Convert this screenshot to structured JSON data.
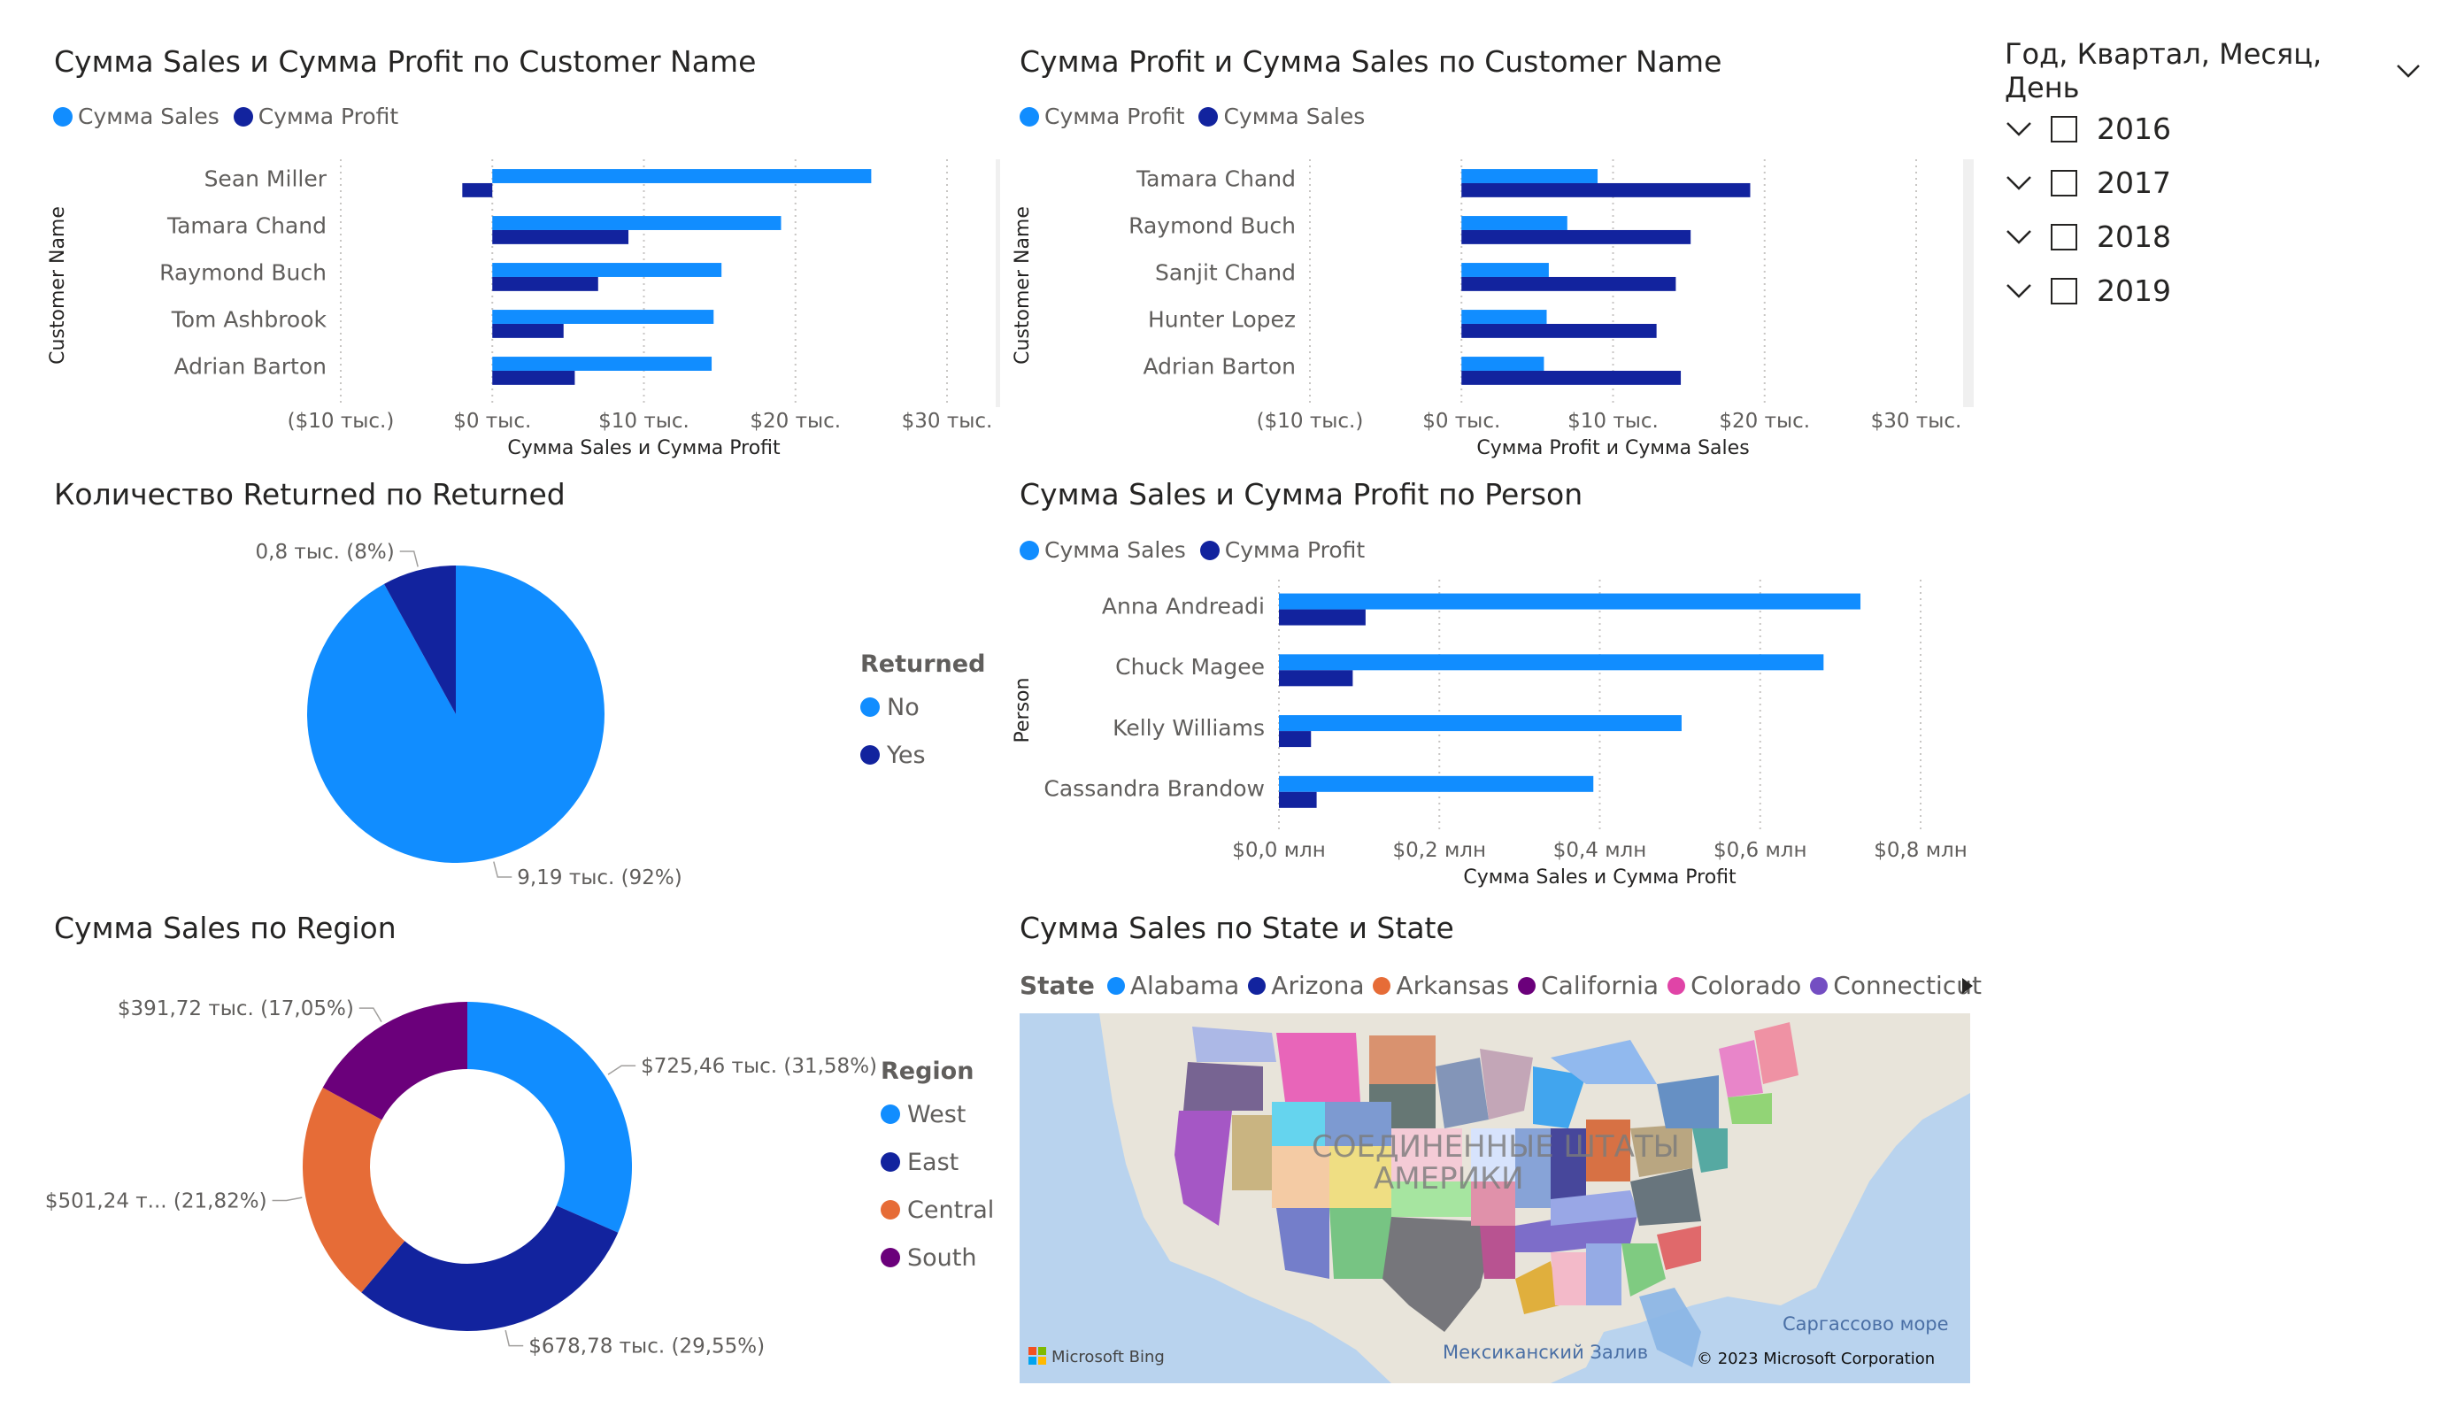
{
  "colors": {
    "sales": "#118DFF",
    "profit": "#12239E",
    "central": "#E66C37",
    "south": "#6B007B",
    "grid": "#c8c6c4",
    "axis_text": "#605e5c"
  },
  "chart_data": [
    {
      "id": "c1",
      "type": "bar",
      "orientation": "horizontal",
      "title": "Сумма Sales и Сумма Profit по Customer Name",
      "xlabel": "Сумма Sales и Сумма Profit",
      "ylabel": "Customer Name",
      "xlim": [
        -10,
        30
      ],
      "ticks": [
        -10,
        0,
        10,
        20,
        30
      ],
      "tick_labels": [
        "($10 тыс.)",
        "$0 тыс.",
        "$10 тыс.",
        "$20 тыс.",
        "$30 тыс."
      ],
      "categories": [
        "Sean Miller",
        "Tamara Chand",
        "Raymond Buch",
        "Tom Ashbrook",
        "Adrian Barton"
      ],
      "series": [
        {
          "name": "Сумма Sales",
          "color": "#118DFF",
          "values": [
            25.0,
            19.05,
            15.12,
            14.6,
            14.47
          ]
        },
        {
          "name": "Сумма Profit",
          "color": "#12239E",
          "values": [
            -1.98,
            8.98,
            6.98,
            4.7,
            5.44
          ]
        }
      ]
    },
    {
      "id": "c2",
      "type": "bar",
      "orientation": "horizontal",
      "title": "Сумма Profit и Сумма Sales по Customer Name",
      "xlabel": "Сумма Profit и Сумма Sales",
      "ylabel": "Customer Name",
      "xlim": [
        -10,
        30
      ],
      "ticks": [
        -10,
        0,
        10,
        20,
        30
      ],
      "tick_labels": [
        "($10 тыс.)",
        "$0 тыс.",
        "$10 тыс.",
        "$20 тыс.",
        "$30 тыс."
      ],
      "categories": [
        "Tamara Chand",
        "Raymond Buch",
        "Sanjit Chand",
        "Hunter Lopez",
        "Adrian Barton"
      ],
      "series": [
        {
          "name": "Сумма Profit",
          "color": "#118DFF",
          "values": [
            8.98,
            6.98,
            5.76,
            5.62,
            5.44
          ]
        },
        {
          "name": "Сумма Sales",
          "color": "#12239E",
          "values": [
            19.05,
            15.12,
            14.14,
            12.87,
            14.47
          ]
        }
      ]
    },
    {
      "id": "c3",
      "type": "pie",
      "title": "Количество Returned по Returned",
      "legend_title": "Returned",
      "categories": [
        "No",
        "Yes"
      ],
      "values": [
        9.19,
        0.8
      ],
      "colors": [
        "#118DFF",
        "#12239E"
      ],
      "data_labels": [
        "9,19 тыс. (92%)",
        "0,8 тыс. (8%)"
      ]
    },
    {
      "id": "c4",
      "type": "bar",
      "orientation": "horizontal",
      "title": "Сумма Sales и Сумма Profit по Person",
      "xlabel": "Сумма Sales и Сумма Profit",
      "ylabel": "Person",
      "xlim": [
        0,
        0.8
      ],
      "ticks": [
        0,
        0.2,
        0.4,
        0.6,
        0.8
      ],
      "tick_labels": [
        "$0,0 млн",
        "$0,2 млн",
        "$0,4 млн",
        "$0,6 млн",
        "$0,8 млн"
      ],
      "categories": [
        "Anna Andreadi",
        "Chuck Magee",
        "Kelly Williams",
        "Cassandra Brandow"
      ],
      "series": [
        {
          "name": "Сумма Sales",
          "color": "#118DFF",
          "values": [
            0.725,
            0.679,
            0.502,
            0.392
          ]
        },
        {
          "name": "Сумма Profit",
          "color": "#12239E",
          "values": [
            0.108,
            0.092,
            0.04,
            0.047
          ]
        }
      ]
    },
    {
      "id": "c5",
      "type": "pie",
      "donut": true,
      "title": "Сумма Sales по Region",
      "legend_title": "Region",
      "categories": [
        "West",
        "East",
        "Central",
        "South"
      ],
      "values": [
        725.46,
        678.78,
        501.24,
        391.72
      ],
      "colors": [
        "#118DFF",
        "#12239E",
        "#E66C37",
        "#6B007B"
      ],
      "data_labels": [
        "$725,46 тыс. (31,58%)",
        "$678,78 тыс. (29,55%)",
        "$501,24 т... (21,82%)",
        "$391,72 тыс. (17,05%)"
      ]
    }
  ],
  "map_chart": {
    "title": "Сумма Sales по State и State",
    "legend_title": "State",
    "legend_items": [
      {
        "name": "Alabama",
        "color": "#118DFF"
      },
      {
        "name": "Arizona",
        "color": "#12239E"
      },
      {
        "name": "Arkansas",
        "color": "#E66C37"
      },
      {
        "name": "California",
        "color": "#6B007B"
      },
      {
        "name": "Colorado",
        "color": "#E044A7"
      },
      {
        "name": "Connecticut",
        "color": "#744EC2"
      }
    ],
    "country_label_1": "СОЕДИНЕННЫЕ ШТАТЫ",
    "country_label_2": "АМЕРИКИ",
    "gulf_label": "Мексиканский Залив",
    "sea_label": "Саргассово море",
    "copyright": "© 2023 Microsoft Corporation",
    "bing": "Microsoft Bing"
  },
  "slicer": {
    "header": "Год, Квартал, Месяц, День",
    "years": [
      "2016",
      "2017",
      "2018",
      "2019"
    ]
  }
}
